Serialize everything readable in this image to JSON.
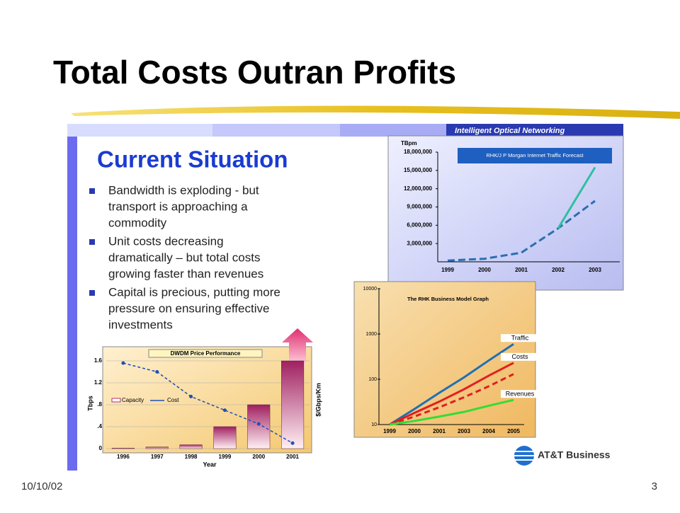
{
  "title": "Total Costs Outran Profits",
  "footer": {
    "date": "10/10/02",
    "page": "3"
  },
  "slide": {
    "banner": "Intelligent Optical Networking",
    "heading": "Current Situation",
    "bullets": [
      [
        "Bandwidth is exploding - but",
        "transport is approaching a",
        "commodity"
      ],
      [
        "Unit costs decreasing",
        "dramatically – but total costs",
        "growing faster than revenues"
      ],
      [
        "Capital is precious, putting more",
        "pressure on ensuring effective",
        "investments"
      ]
    ],
    "logo": "AT&T Business"
  },
  "traffic_chart": {
    "type": "line",
    "unit": "TBpm",
    "legend": "RHK/J P Morgan Internet Traffic Forecast",
    "categories": [
      "1999",
      "2000",
      "2001",
      "2002",
      "2003"
    ],
    "ylim": [
      0,
      18000000
    ],
    "yticks": [
      {
        "value": 3000000,
        "label": "3,000,000"
      },
      {
        "value": 6000000,
        "label": "6,000,000"
      },
      {
        "value": 9000000,
        "label": "9,000,000"
      },
      {
        "value": 12000000,
        "label": "12,000,000"
      },
      {
        "value": 15000000,
        "label": "15,000,000"
      },
      {
        "value": 18000000,
        "label": "18,000,000"
      }
    ],
    "series": [
      {
        "color": "#2a6fb0",
        "values": [
          200000,
          500000,
          1500000,
          5500000,
          10000000
        ]
      },
      {
        "color": "#2fbfa0",
        "values": [
          null,
          null,
          null,
          5500000,
          15500000
        ]
      }
    ]
  },
  "rhk_chart": {
    "type": "line",
    "title": "The RHK Business Model Graph",
    "categories": [
      "1999",
      "2000",
      "2001",
      "2003",
      "2004",
      "2005"
    ],
    "log_scale": true,
    "ylim": [
      10,
      10000
    ],
    "yticks": [
      10,
      100,
      1000,
      10000
    ],
    "series": [
      {
        "name": "Traffic",
        "color": "#1f6fb5",
        "values": [
          10,
          22,
          50,
          110,
          260,
          600
        ]
      },
      {
        "name": "Costs",
        "color": "#e02020",
        "values": [
          10,
          18,
          32,
          60,
          120,
          230
        ]
      },
      {
        "color": "#e02020",
        "values": [
          10,
          15,
          24,
          40,
          70,
          130
        ]
      },
      {
        "name": "Revenues",
        "color": "#33dd33",
        "values": [
          10,
          12,
          15,
          19,
          26,
          35
        ]
      }
    ]
  },
  "dwdm_chart": {
    "type": "bar",
    "title": "DWDM Price Performance",
    "y_label": "Tbps",
    "y2_label": "$/Gbps/Km",
    "x_label": "Year",
    "categories": [
      "1996",
      "1997",
      "1998",
      "1999",
      "2000",
      "2001"
    ],
    "ylim": [
      0,
      1.6
    ],
    "yticks": [
      0,
      {
        "value": 0.4,
        "label": ".4"
      },
      {
        "value": 0.8,
        "label": ".8"
      },
      1.2,
      1.6
    ],
    "series": [
      {
        "name": "Capacity",
        "color": "#b0306a",
        "values": [
          0.01,
          0.03,
          0.07,
          0.4,
          0.8,
          1.6
        ]
      },
      {
        "name": "Cost",
        "color": "#1f4fb5",
        "values": [
          1.56,
          1.4,
          0.95,
          0.7,
          0.45,
          0.1
        ]
      }
    ]
  }
}
